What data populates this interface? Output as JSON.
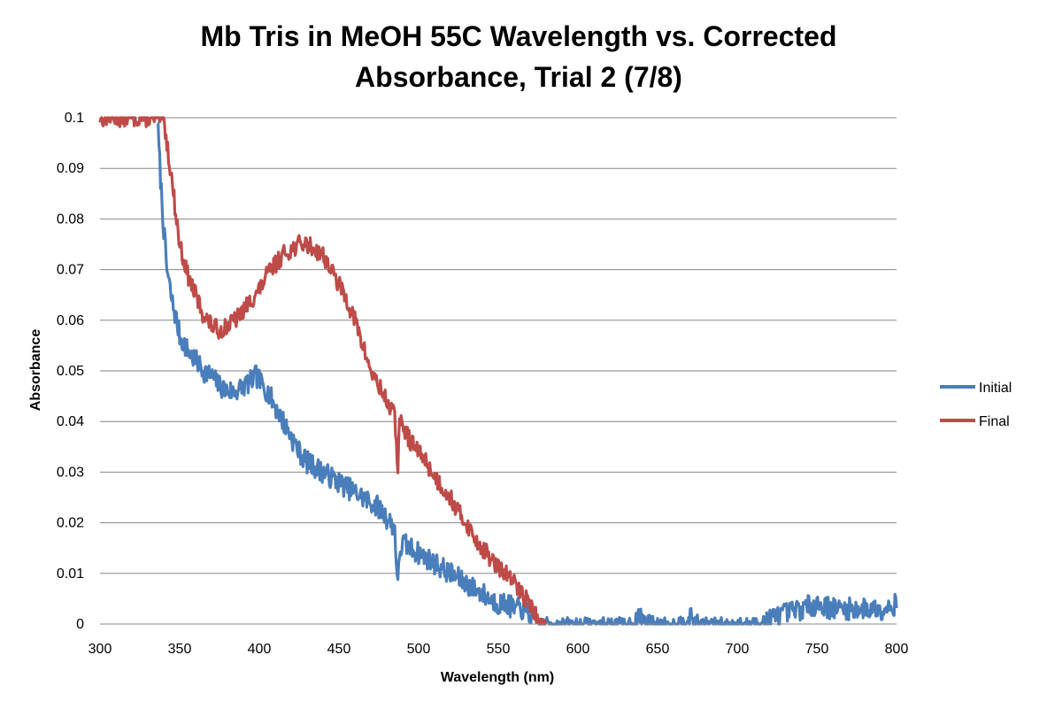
{
  "chart_data": {
    "type": "line",
    "title_lines": [
      "Mb Tris in MeOH 55C Wavelength vs. Corrected",
      "Absorbance, Trial 2 (7/8)"
    ],
    "xlabel": "Wavelength (nm)",
    "ylabel": "Absorbance",
    "xlim": [
      300,
      800
    ],
    "ylim": [
      0,
      0.1
    ],
    "x_ticks": [
      "300",
      "350",
      "400",
      "450",
      "500",
      "550",
      "600",
      "650",
      "700",
      "750",
      "800"
    ],
    "y_ticks": [
      "0",
      "0.01",
      "0.02",
      "0.03",
      "0.04",
      "0.05",
      "0.06",
      "0.07",
      "0.08",
      "0.09",
      "0.1"
    ],
    "grid": "horizontal",
    "legend_position": "right",
    "series": [
      {
        "name": "Initial",
        "color": "#4a7ebb",
        "x": [
          336,
          338,
          340,
          342,
          345,
          348,
          350,
          355,
          360,
          365,
          370,
          375,
          380,
          385,
          390,
          395,
          398,
          400,
          405,
          410,
          415,
          420,
          425,
          430,
          435,
          440,
          445,
          450,
          455,
          460,
          465,
          470,
          475,
          480,
          485,
          487,
          488,
          490,
          495,
          500,
          505,
          510,
          515,
          520,
          525,
          530,
          535,
          540,
          545,
          550,
          555,
          560,
          565,
          570,
          573,
          576,
          580,
          590,
          600,
          610,
          620,
          630,
          640,
          650,
          660,
          670,
          680,
          690,
          700,
          710,
          720,
          730,
          740,
          750,
          760,
          770,
          780,
          790,
          800
        ],
        "y": [
          0.1,
          0.088,
          0.078,
          0.07,
          0.064,
          0.06,
          0.057,
          0.054,
          0.052,
          0.05,
          0.049,
          0.047,
          0.046,
          0.046,
          0.047,
          0.048,
          0.049,
          0.048,
          0.046,
          0.043,
          0.04,
          0.037,
          0.034,
          0.032,
          0.031,
          0.03,
          0.029,
          0.028,
          0.027,
          0.026,
          0.025,
          0.024,
          0.023,
          0.021,
          0.019,
          0.007,
          0.014,
          0.016,
          0.015,
          0.014,
          0.013,
          0.012,
          0.011,
          0.01,
          0.009,
          0.008,
          0.007,
          0.006,
          0.005,
          0.004,
          0.004,
          0.003,
          0.003,
          0.002,
          0.001,
          0.0,
          0.0,
          0.0,
          0.0,
          0.0,
          0.0,
          0.0,
          0.001,
          0.0,
          0.0,
          0.001,
          0.0,
          0.0,
          0.0,
          0.0,
          0.001,
          0.002,
          0.003,
          0.004,
          0.003,
          0.003,
          0.003,
          0.003,
          0.004
        ],
        "noise": 0.0022,
        "seed": 7
      },
      {
        "name": "Final",
        "color": "#be4b48",
        "x": [
          300,
          312,
          340,
          342,
          345,
          348,
          350,
          355,
          360,
          365,
          370,
          375,
          380,
          385,
          390,
          395,
          400,
          405,
          410,
          415,
          420,
          425,
          430,
          435,
          440,
          445,
          450,
          455,
          460,
          465,
          470,
          475,
          480,
          485,
          487,
          488,
          490,
          495,
          500,
          505,
          510,
          515,
          520,
          525,
          530,
          535,
          540,
          545,
          550,
          555,
          560,
          565,
          570,
          573,
          576,
          580
        ],
        "y": [
          0.1,
          0.1,
          0.1,
          0.095,
          0.088,
          0.08,
          0.075,
          0.069,
          0.065,
          0.061,
          0.059,
          0.058,
          0.059,
          0.06,
          0.062,
          0.064,
          0.066,
          0.069,
          0.071,
          0.073,
          0.074,
          0.075,
          0.075,
          0.074,
          0.073,
          0.07,
          0.067,
          0.064,
          0.06,
          0.055,
          0.05,
          0.047,
          0.044,
          0.041,
          0.031,
          0.04,
          0.039,
          0.036,
          0.034,
          0.032,
          0.029,
          0.027,
          0.025,
          0.022,
          0.02,
          0.017,
          0.015,
          0.013,
          0.011,
          0.01,
          0.008,
          0.006,
          0.004,
          0.002,
          0.0,
          0.0
        ],
        "noise": 0.0018,
        "seed": 13
      }
    ]
  }
}
